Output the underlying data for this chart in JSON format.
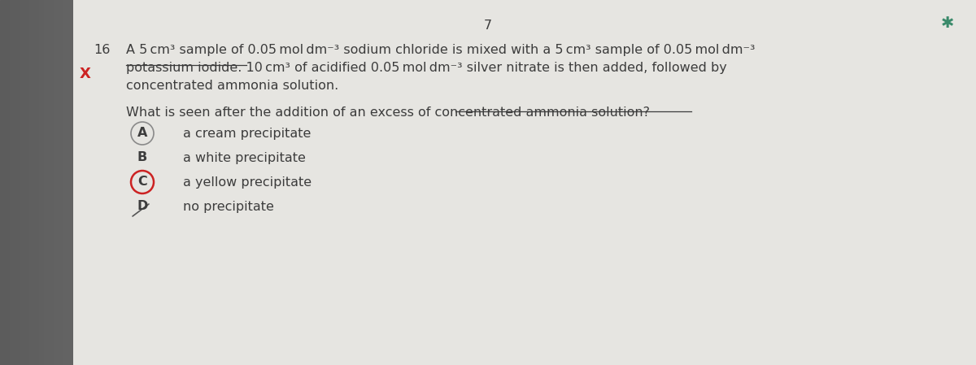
{
  "bg_left_color": "#c0bebb",
  "bg_right_color": "#d8d6d2",
  "page_color": "#e8e7e3",
  "page_num": "7",
  "question_num": "16",
  "line1": "A 5 cm³ sample of 0.05 mol dm⁻³ sodium chloride is mixed with a 5 cm³ sample of 0.05 mol dm⁻³",
  "line2": "potassium iodide. 10 cm³ of acidified 0.05 mol dm⁻³ silver nitrate is then added, followed by",
  "line3": "concentrated ammonia solution.",
  "sub_q": "What is seen after the addition of an excess of concentrated ammonia solution?",
  "options": [
    {
      "label": "A",
      "text": "a cream precipitate",
      "circle_color": "#8a8a8a",
      "circle_lw": 1.2
    },
    {
      "label": "B",
      "text": "a white precipitate",
      "circle_color": null,
      "circle_lw": 0
    },
    {
      "label": "C",
      "text": "a yellow precipitate",
      "circle_color": "#cc2222",
      "circle_lw": 1.8
    },
    {
      "label": "D",
      "text": "no precipitate",
      "circle_color": null,
      "circle_lw": 0
    }
  ],
  "text_color": "#3c3c3c",
  "red_color": "#cc2222",
  "teal_color": "#3a8a6a",
  "underline_color": "#3c3c3c",
  "font_size": 11.5
}
